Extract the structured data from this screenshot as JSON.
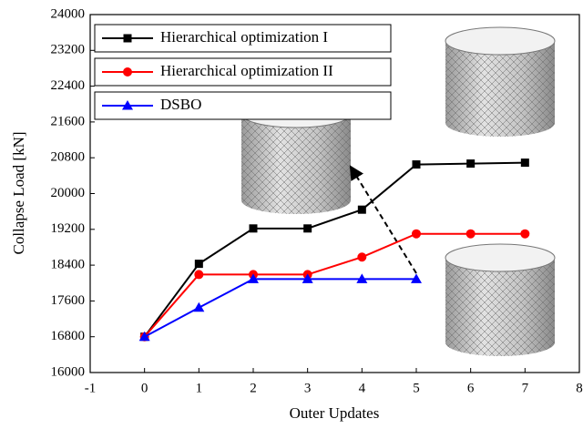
{
  "chart_data": {
    "type": "line",
    "x_label": "Outer Updates",
    "y_label": "Collapse Load [kN]",
    "xlim": [
      -1,
      8
    ],
    "xticks": [
      -1,
      0,
      1,
      2,
      3,
      4,
      5,
      6,
      7,
      8
    ],
    "ylim": [
      16000,
      24000
    ],
    "yticks": [
      16000,
      16800,
      17600,
      18400,
      19200,
      20000,
      20800,
      21600,
      22400,
      23200,
      24000
    ],
    "series": [
      {
        "name": "Hierarchical optimization I",
        "color": "#000000",
        "marker": "square",
        "x": [
          0,
          1,
          2,
          3,
          4,
          5,
          6,
          7
        ],
        "values": [
          16800,
          18430,
          19220,
          19220,
          19640,
          20650,
          20670,
          20690
        ]
      },
      {
        "name": "Hierarchical optimization II",
        "color": "#ff0000",
        "marker": "circle",
        "x": [
          0,
          1,
          2,
          3,
          4,
          5,
          6,
          7
        ],
        "values": [
          16800,
          18190,
          18190,
          18190,
          18580,
          19100,
          19100,
          19100
        ]
      },
      {
        "name": "DSBO",
        "color": "#0000ff",
        "marker": "triangle",
        "x": [
          0,
          1,
          2,
          3,
          4,
          5
        ],
        "values": [
          16800,
          17450,
          18090,
          18090,
          18090,
          18090
        ]
      }
    ]
  }
}
